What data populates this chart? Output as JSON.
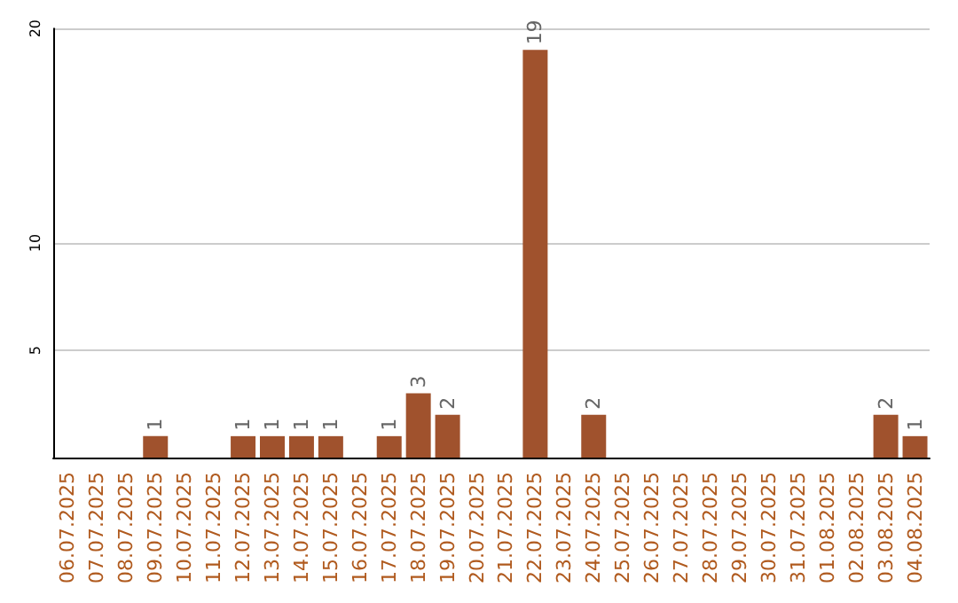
{
  "chart_data": {
    "type": "bar",
    "categories": [
      "06.07.2025",
      "07.07.2025",
      "08.07.2025",
      "09.07.2025",
      "10.07.2025",
      "11.07.2025",
      "12.07.2025",
      "13.07.2025",
      "14.07.2025",
      "15.07.2025",
      "16.07.2025",
      "17.07.2025",
      "18.07.2025",
      "19.07.2025",
      "20.07.2025",
      "21.07.2025",
      "22.07.2025",
      "23.07.2025",
      "24.07.2025",
      "25.07.2025",
      "26.07.2025",
      "27.07.2025",
      "28.07.2025",
      "29.07.2025",
      "30.07.2025",
      "31.07.2025",
      "01.08.2025",
      "02.08.2025",
      "03.08.2025",
      "04.08.2025"
    ],
    "values": [
      0,
      0,
      0,
      1,
      0,
      0,
      1,
      1,
      1,
      1,
      0,
      1,
      3,
      2,
      0,
      0,
      19,
      0,
      2,
      0,
      0,
      0,
      0,
      0,
      0,
      0,
      0,
      0,
      2,
      1
    ],
    "value_labels": [
      null,
      null,
      null,
      "1",
      null,
      null,
      "1",
      "1",
      "1",
      "1",
      null,
      "1",
      "3",
      "2",
      null,
      null,
      "19",
      null,
      "2",
      null,
      null,
      null,
      null,
      null,
      null,
      null,
      null,
      null,
      "2",
      "1"
    ],
    "color": "#a0522d",
    "ylim": [
      0,
      20
    ],
    "yticks": [
      5,
      10,
      20
    ],
    "grid": "y"
  }
}
